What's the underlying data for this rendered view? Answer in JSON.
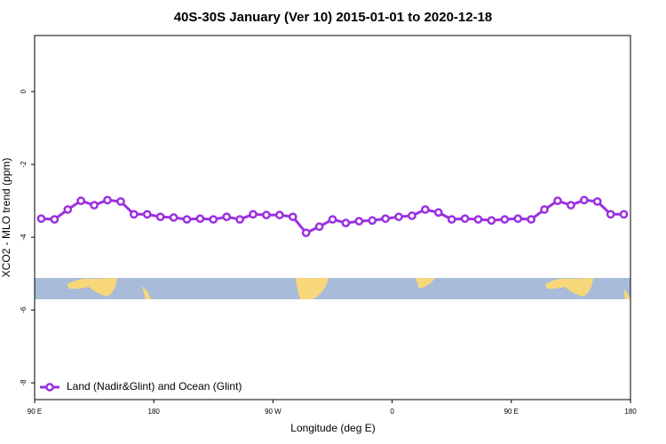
{
  "chart_data": {
    "type": "line",
    "title": "40S-30S January (Ver 10)   2015-01-01 to 2020-12-18",
    "x_label": "Longitude (deg E)",
    "y_label": "XCO2 - MLO trend (ppm)",
    "x": [
      95,
      105,
      115,
      125,
      135,
      145,
      155,
      165,
      175,
      185,
      195,
      205,
      215,
      225,
      235,
      245,
      255,
      265,
      275,
      285,
      295,
      305,
      315,
      325,
      335,
      345,
      355,
      365,
      375,
      385,
      395,
      405,
      415,
      425,
      435,
      445,
      455,
      465,
      475,
      485,
      495,
      505,
      515,
      525,
      535
    ],
    "series": [
      {
        "name": "Land (Nadir&Glint) and Ocean (Glint)",
        "color": "#9b30e0",
        "values": [
          -3.49,
          -3.51,
          -3.24,
          -3.0,
          -3.12,
          -2.98,
          -3.02,
          -3.37,
          -3.37,
          -3.44,
          -3.46,
          -3.51,
          -3.49,
          -3.51,
          -3.44,
          -3.51,
          -3.37,
          -3.39,
          -3.39,
          -3.44,
          -3.88,
          -3.71,
          -3.51,
          -3.61,
          -3.56,
          -3.54,
          -3.49,
          -3.44,
          -3.41,
          -3.24,
          -3.32,
          -3.51,
          -3.49,
          -3.51,
          -3.54,
          -3.51,
          -3.49,
          -3.51,
          -3.24,
          -3.0,
          -3.12,
          -2.98,
          -3.02,
          -3.37,
          -3.37
        ]
      }
    ],
    "xlim": [
      90,
      540
    ],
    "xticks": [
      {
        "value": 90,
        "label": "90 E"
      },
      180,
      {
        "value": 270,
        "label": "90 W"
      },
      {
        "value": 360,
        "label": "0"
      },
      {
        "value": 450,
        "label": "90 E"
      },
      {
        "value": 540,
        "label": "180"
      }
    ],
    "ylim": [
      -8.46,
      1.54
    ],
    "yticks": [
      0,
      -2,
      -4,
      -6,
      -8
    ],
    "legend": "bottom-left"
  }
}
